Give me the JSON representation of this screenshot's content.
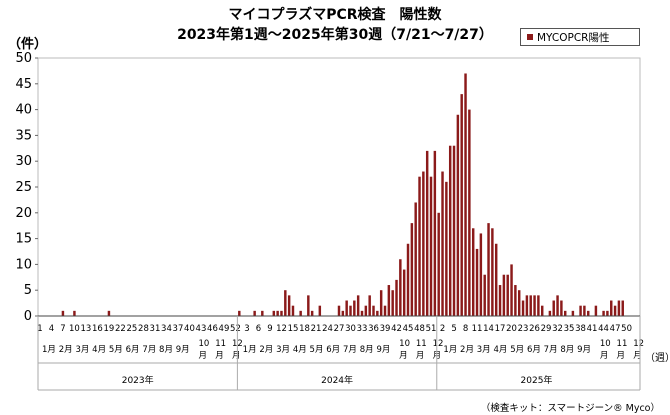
{
  "chart_data": {
    "type": "bar",
    "title": "マイコプラズマPCR検査　陽性数",
    "subtitle": "2023年第1週～2025年第30週（7/21～7/27）",
    "ylabel": "（件）",
    "xunit": "（週）",
    "ylim": [
      0,
      50
    ],
    "yticks": [
      0,
      5,
      10,
      15,
      20,
      25,
      30,
      35,
      40,
      45,
      50
    ],
    "grid": false,
    "legend_position": "top-right",
    "bar_color": "#8b1a1a",
    "series": [
      {
        "name": "MYCOPCR陽性",
        "values": [
          0,
          0,
          0,
          0,
          0,
          0,
          1,
          0,
          0,
          1,
          0,
          0,
          0,
          0,
          0,
          0,
          0,
          0,
          1,
          0,
          0,
          0,
          0,
          0,
          0,
          0,
          0,
          0,
          0,
          0,
          0,
          0,
          0,
          0,
          0,
          0,
          0,
          0,
          0,
          0,
          0,
          0,
          0,
          0,
          0,
          0,
          0,
          0,
          0,
          0,
          0,
          0,
          1,
          0,
          0,
          0,
          1,
          0,
          1,
          0,
          0,
          1,
          1,
          1,
          5,
          4,
          2,
          0,
          1,
          0,
          4,
          1,
          0,
          2,
          0,
          0,
          0,
          0,
          2,
          1,
          3,
          2,
          3,
          4,
          1,
          2,
          4,
          2,
          1,
          5,
          2,
          6,
          5,
          7,
          11,
          9,
          14,
          18,
          22,
          27,
          28,
          32,
          27,
          32,
          20,
          28,
          26,
          33,
          33,
          39,
          43,
          47,
          40,
          17,
          13,
          16,
          8,
          18,
          17,
          14,
          6,
          8,
          8,
          10,
          6,
          5,
          3,
          4,
          4,
          4,
          4,
          2,
          0,
          1,
          3,
          4,
          3,
          1,
          0,
          1,
          0,
          2,
          2,
          1,
          0,
          2,
          0,
          1,
          1,
          3,
          2,
          3,
          3,
          0,
          0,
          0,
          0
        ]
      }
    ],
    "week_ticks": [
      "1",
      "4",
      "7",
      "10",
      "13",
      "16",
      "19",
      "22",
      "25",
      "28",
      "31",
      "34",
      "37",
      "40",
      "43",
      "46",
      "49",
      "52",
      "3",
      "6",
      "9",
      "12",
      "15",
      "18",
      "21",
      "24",
      "27",
      "30",
      "33",
      "36",
      "39",
      "42",
      "45",
      "48",
      "51",
      "2",
      "5",
      "8",
      "11",
      "14",
      "17",
      "20",
      "23",
      "26",
      "29",
      "32",
      "35",
      "38",
      "41",
      "44",
      "47",
      "50"
    ],
    "month_ticks": [
      "1月",
      "2月",
      "3月",
      "4月",
      "5月",
      "6月",
      "7月",
      "8月",
      "9月",
      "10\n月",
      "11\n月",
      "12\n月",
      "1月",
      "2月",
      "3月",
      "4月",
      "5月",
      "6月",
      "7月",
      "8月",
      "9月",
      "10\n月",
      "11\n月",
      "12\n月",
      "1月",
      "2月",
      "3月",
      "4月",
      "5月",
      "6月",
      "7月",
      "8月",
      "9月",
      "10\n月",
      "11\n月",
      "12\n月"
    ],
    "years": [
      "2023年",
      "2024年",
      "2025年"
    ]
  },
  "legend": {
    "label": "MYCOPCR陽性"
  },
  "source": "（検査キット：スマートジーン® Myco）"
}
